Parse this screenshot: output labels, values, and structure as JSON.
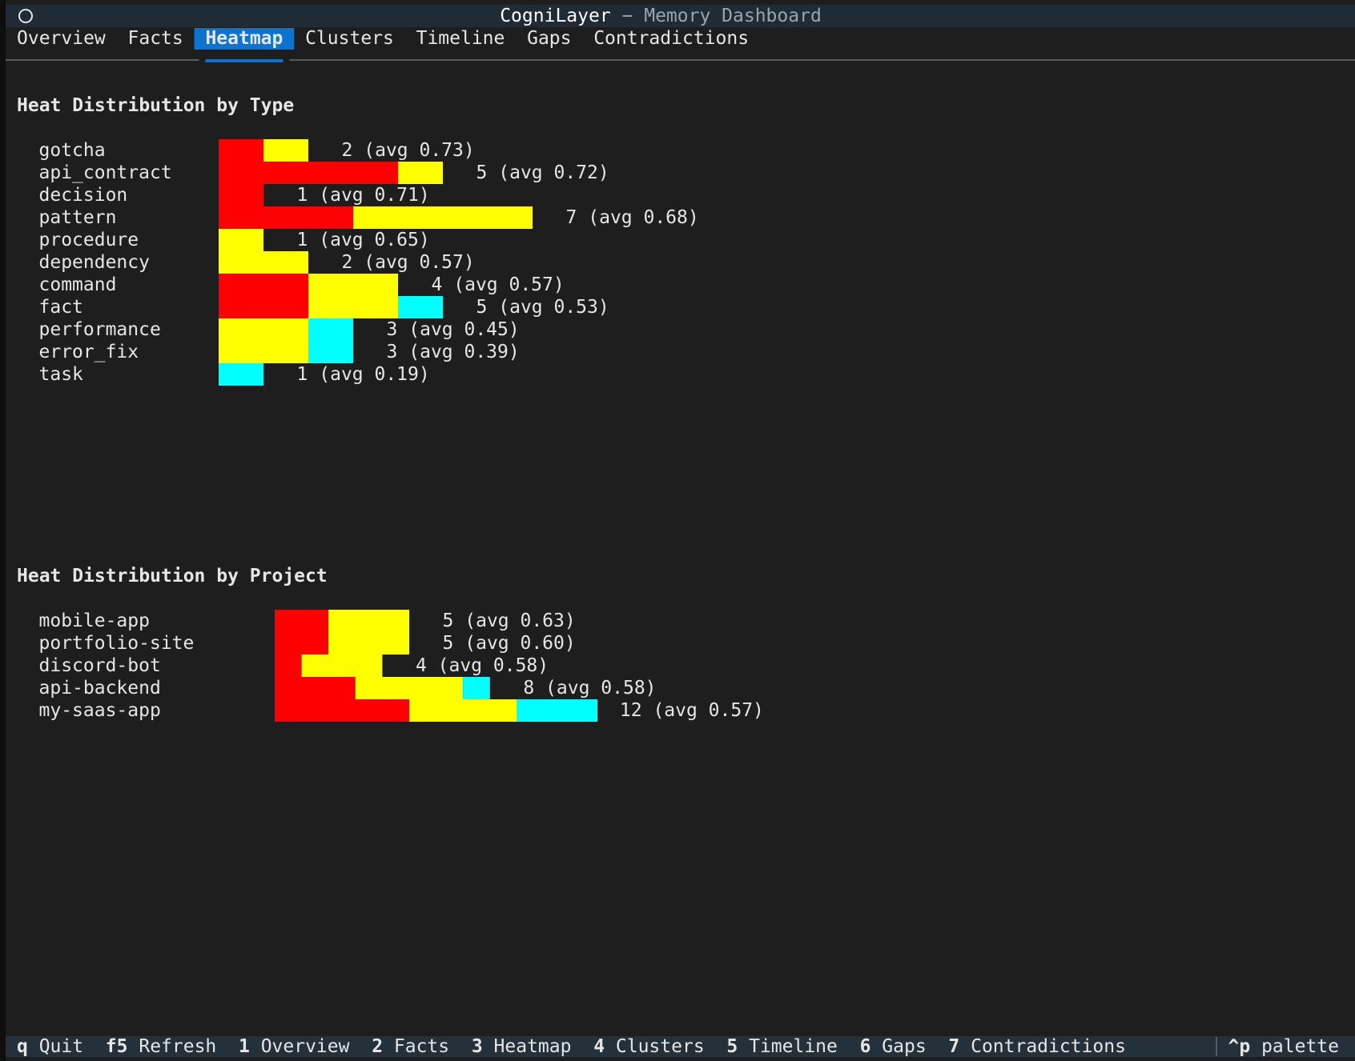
{
  "window": {
    "app": "CogniLayer",
    "subtitle": "− Memory Dashboard"
  },
  "tabs": [
    "Overview",
    "Facts",
    "Heatmap",
    "Clusters",
    "Timeline",
    "Gaps",
    "Contradictions"
  ],
  "active_tab": 2,
  "sections": [
    {
      "title": "Heat Distribution by Type",
      "colors": [
        "#ff0000",
        "#ffff00",
        "#00ffff"
      ],
      "rows": [
        {
          "label": "gotcha",
          "segments": [
            1,
            1,
            0
          ],
          "count": 2,
          "color": "#ff0000",
          "avg": "(avg 0.73)"
        },
        {
          "label": "api_contract",
          "segments": [
            4,
            1,
            0
          ],
          "count": 5,
          "color": "#ff0000",
          "avg": "(avg 0.72)"
        },
        {
          "label": "decision",
          "segments": [
            1,
            0,
            0
          ],
          "count": 1,
          "color": "#ff0000",
          "avg": "(avg 0.71)"
        },
        {
          "label": "pattern",
          "segments": [
            3,
            4,
            0
          ],
          "count": 7,
          "color": "#ffff00",
          "avg": "(avg 0.68)"
        },
        {
          "label": "procedure",
          "segments": [
            0,
            1,
            0
          ],
          "count": 1,
          "color": "#ffff00",
          "avg": "(avg 0.65)"
        },
        {
          "label": "dependency",
          "segments": [
            0,
            2,
            0
          ],
          "count": 2,
          "color": "#ffff00",
          "avg": "(avg 0.57)"
        },
        {
          "label": "command",
          "segments": [
            2,
            2,
            0
          ],
          "count": 4,
          "color": "#ffff00",
          "avg": "(avg 0.57)"
        },
        {
          "label": "fact",
          "segments": [
            2,
            2,
            1
          ],
          "count": 5,
          "color": "#ffff00",
          "avg": "(avg 0.53)"
        },
        {
          "label": "performance",
          "segments": [
            0,
            2,
            1
          ],
          "count": 3,
          "color": "#ffff00",
          "avg": "(avg 0.45)"
        },
        {
          "label": "error_fix",
          "segments": [
            0,
            2,
            1
          ],
          "count": 3,
          "color": "#ffff00",
          "avg": "(avg 0.39)"
        },
        {
          "label": "task",
          "segments": [
            0,
            0,
            1
          ],
          "count": 1,
          "color": "#00ffff",
          "avg": "(avg 0.19)"
        }
      ]
    },
    {
      "title": "Heat Distribution by Project",
      "colors": [
        "#ff0000",
        "#ffff00",
        "#00ffff"
      ],
      "rows": [
        {
          "label": "mobile-app",
          "segments": [
            2,
            3,
            0
          ],
          "count": 5,
          "color": "#ffff00",
          "avg": "(avg 0.63)"
        },
        {
          "label": "portfolio-site",
          "segments": [
            2,
            3,
            0
          ],
          "count": 5,
          "color": "#ffff00",
          "avg": "(avg 0.60)"
        },
        {
          "label": "discord-bot",
          "segments": [
            1,
            3,
            0
          ],
          "count": 4,
          "color": "#ffff00",
          "avg": "(avg 0.58)"
        },
        {
          "label": "api-backend",
          "segments": [
            3,
            4,
            1
          ],
          "count": 8,
          "color": "#ffff00",
          "avg": "(avg 0.58)"
        },
        {
          "label": "my-saas-app",
          "segments": [
            5,
            4,
            3
          ],
          "count": 12,
          "color": "#ffff00",
          "avg": "(avg 0.57)"
        }
      ]
    }
  ],
  "footer": {
    "bindings": [
      {
        "key": "q",
        "label": "Quit"
      },
      {
        "key": "f5",
        "label": "Refresh"
      },
      {
        "key": "1",
        "label": "Overview"
      },
      {
        "key": "2",
        "label": "Facts"
      },
      {
        "key": "3",
        "label": "Heatmap"
      },
      {
        "key": "4",
        "label": "Clusters"
      },
      {
        "key": "5",
        "label": "Timeline"
      },
      {
        "key": "6",
        "label": "Gaps"
      },
      {
        "key": "7",
        "label": "Contradictions"
      }
    ],
    "palette": {
      "key": "^p",
      "label": "palette"
    }
  }
}
